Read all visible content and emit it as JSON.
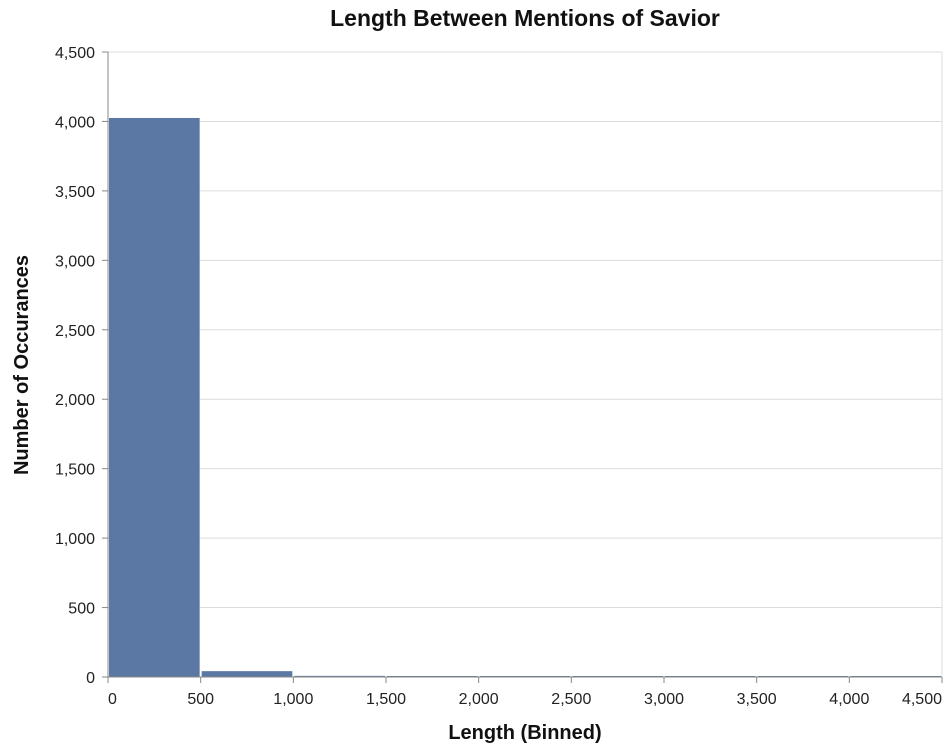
{
  "chart_data": {
    "type": "bar",
    "title": "Length Between Mentions of Savior",
    "xlabel": "Length (Binned)",
    "ylabel": "Number of Occurances",
    "xlim": [
      0,
      4500
    ],
    "ylim": [
      0,
      4500
    ],
    "bin_width": 500,
    "x_ticks": [
      0,
      500,
      1000,
      1500,
      2000,
      2500,
      3000,
      3500,
      4000,
      4500
    ],
    "x_tick_labels": [
      "0",
      "500",
      "1,000",
      "1,500",
      "2,000",
      "2,500",
      "3,000",
      "3,500",
      "4,000",
      "4,500"
    ],
    "y_ticks": [
      0,
      500,
      1000,
      1500,
      2000,
      2500,
      3000,
      3500,
      4000,
      4500
    ],
    "y_tick_labels": [
      "0",
      "500",
      "1,000",
      "1,500",
      "2,000",
      "2,500",
      "3,000",
      "3,500",
      "4,000",
      "4,500"
    ],
    "bins": [
      {
        "start": 0,
        "end": 500,
        "count": 4025
      },
      {
        "start": 500,
        "end": 1000,
        "count": 42
      },
      {
        "start": 1000,
        "end": 1500,
        "count": 8
      },
      {
        "start": 1500,
        "end": 2000,
        "count": 3
      },
      {
        "start": 2000,
        "end": 2500,
        "count": 2
      },
      {
        "start": 2500,
        "end": 3000,
        "count": 1
      },
      {
        "start": 3000,
        "end": 3500,
        "count": 1
      },
      {
        "start": 3500,
        "end": 4000,
        "count": 1
      },
      {
        "start": 4000,
        "end": 4500,
        "count": 1
      }
    ],
    "grid": true,
    "bar_color": "#5b77a4"
  }
}
